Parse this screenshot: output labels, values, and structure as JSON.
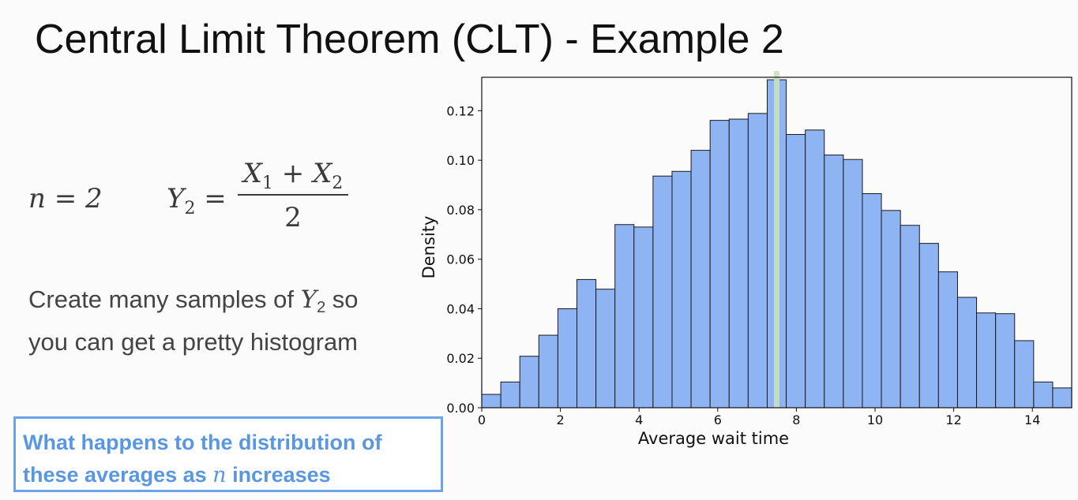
{
  "slide": {
    "title": "Central Limit Theorem (CLT) - Example 2"
  },
  "formula": {
    "n_part": "n = 2",
    "y_symbol": "Y",
    "y_sub": "2",
    "equals": "=",
    "numerator_x1": "X",
    "numerator_x1_sub": "1",
    "plus": "+",
    "numerator_x2": "X",
    "numerator_x2_sub": "2",
    "denominator": "2"
  },
  "body": {
    "line1_prefix": "Create many samples of ",
    "var_symbol": "Y",
    "var_sub": "2",
    "line1_suffix": " so",
    "line2": "you can get a pretty histogram"
  },
  "callout": {
    "line1": "What happens to the distribution of",
    "line2_prefix": "these averages as ",
    "var": "n",
    "line2_suffix": " increases"
  },
  "chart_data": {
    "type": "bar",
    "xlabel": "Average wait time",
    "ylabel": "Density",
    "xlim": [
      0,
      15
    ],
    "ylim": [
      0,
      0.1335
    ],
    "xticks": [
      "0",
      "2",
      "4",
      "6",
      "8",
      "10",
      "12",
      "14"
    ],
    "yticks": [
      "0.00",
      "0.02",
      "0.04",
      "0.06",
      "0.08",
      "0.10",
      "0.12"
    ],
    "bin_width": 0.4839,
    "bin_start": 0,
    "values": [
      0.0054,
      0.0104,
      0.0208,
      0.0293,
      0.04,
      0.0518,
      0.0479,
      0.074,
      0.073,
      0.0936,
      0.0955,
      0.104,
      0.1161,
      0.1166,
      0.1189,
      0.1325,
      0.1104,
      0.1122,
      0.1021,
      0.1003,
      0.0865,
      0.0797,
      0.0737,
      0.0664,
      0.0549,
      0.0446,
      0.0383,
      0.038,
      0.0271,
      0.0104,
      0.008
    ],
    "marker_line_x": 7.5,
    "colors": {
      "bar_fill": "#8fb4f4",
      "bar_edge": "#1a1a1a",
      "marker_line": "#c9e2c0"
    }
  }
}
